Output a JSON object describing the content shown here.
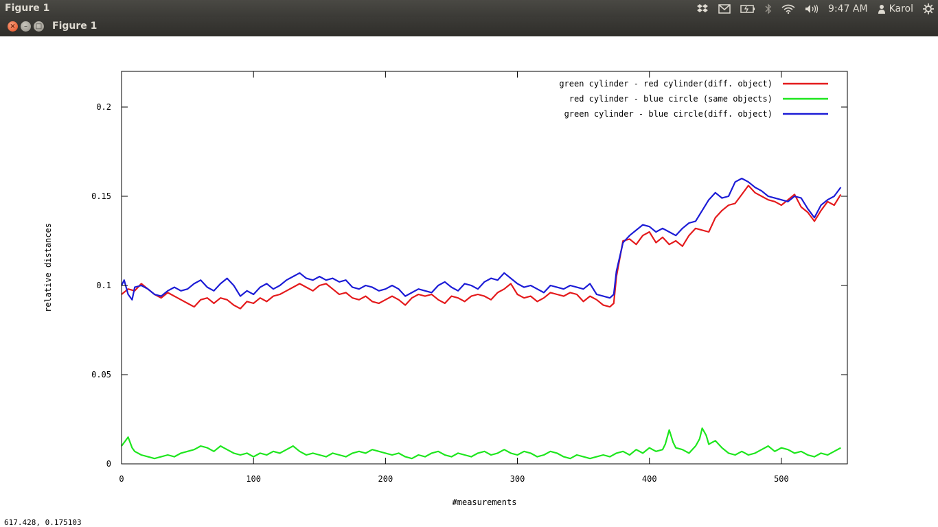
{
  "topbar": {
    "app_title": "Figure 1",
    "clock": "9:47 AM",
    "user": "Karol",
    "icons": [
      "dropbox-icon",
      "mail-icon",
      "battery-icon",
      "bluetooth-icon",
      "wifi-icon",
      "volume-icon",
      "user-icon",
      "gear-icon"
    ]
  },
  "window": {
    "title": "Figure 1",
    "buttons": {
      "close": "×",
      "minimize": "–",
      "maximize": "□"
    }
  },
  "status": {
    "coords": "617.428,  0.175103"
  },
  "chart_data": {
    "type": "line",
    "title": "",
    "xlabel": "#measurements",
    "ylabel": "relative distances",
    "xlim": [
      0,
      550
    ],
    "ylim": [
      0,
      0.22
    ],
    "xticks": [
      0,
      100,
      200,
      300,
      400,
      500
    ],
    "yticks": [
      0,
      0.05,
      0.1,
      0.15,
      0.2
    ],
    "xtick_labels": [
      "0",
      "100",
      "200",
      "300",
      "400",
      "500"
    ],
    "ytick_labels": [
      "0",
      "0.05",
      "0.1",
      "0.15",
      "0.2"
    ],
    "grid": false,
    "legend_position": "top-right",
    "series": [
      {
        "name": "green cylinder - red cylinder(diff. object)",
        "color": "#e41a1c",
        "x": [
          0,
          5,
          10,
          15,
          20,
          25,
          30,
          35,
          40,
          45,
          50,
          55,
          60,
          65,
          70,
          75,
          80,
          85,
          90,
          95,
          100,
          105,
          110,
          115,
          120,
          125,
          130,
          135,
          140,
          145,
          150,
          155,
          160,
          165,
          170,
          175,
          180,
          185,
          190,
          195,
          200,
          205,
          210,
          215,
          220,
          225,
          230,
          235,
          240,
          245,
          250,
          255,
          260,
          265,
          270,
          275,
          280,
          285,
          290,
          295,
          300,
          305,
          310,
          315,
          320,
          325,
          330,
          335,
          340,
          345,
          350,
          355,
          360,
          365,
          370,
          373,
          375,
          380,
          385,
          390,
          395,
          400,
          405,
          410,
          415,
          420,
          425,
          430,
          435,
          440,
          445,
          450,
          455,
          460,
          465,
          470,
          475,
          480,
          485,
          490,
          495,
          500,
          505,
          510,
          515,
          520,
          525,
          530,
          535,
          540,
          545
        ],
        "y": [
          0.095,
          0.098,
          0.097,
          0.101,
          0.098,
          0.095,
          0.093,
          0.096,
          0.094,
          0.092,
          0.09,
          0.088,
          0.092,
          0.093,
          0.09,
          0.093,
          0.092,
          0.089,
          0.087,
          0.091,
          0.09,
          0.093,
          0.091,
          0.094,
          0.095,
          0.097,
          0.099,
          0.101,
          0.099,
          0.097,
          0.1,
          0.101,
          0.098,
          0.095,
          0.096,
          0.093,
          0.092,
          0.094,
          0.091,
          0.09,
          0.092,
          0.094,
          0.092,
          0.089,
          0.093,
          0.095,
          0.094,
          0.095,
          0.092,
          0.09,
          0.094,
          0.093,
          0.091,
          0.094,
          0.095,
          0.094,
          0.092,
          0.096,
          0.098,
          0.101,
          0.095,
          0.093,
          0.094,
          0.091,
          0.093,
          0.096,
          0.095,
          0.094,
          0.096,
          0.095,
          0.091,
          0.094,
          0.092,
          0.089,
          0.088,
          0.09,
          0.105,
          0.125,
          0.126,
          0.123,
          0.128,
          0.13,
          0.124,
          0.127,
          0.123,
          0.125,
          0.122,
          0.128,
          0.132,
          0.131,
          0.13,
          0.138,
          0.142,
          0.145,
          0.146,
          0.151,
          0.156,
          0.152,
          0.15,
          0.148,
          0.147,
          0.145,
          0.148,
          0.151,
          0.144,
          0.141,
          0.136,
          0.142,
          0.147,
          0.145,
          0.151
        ]
      },
      {
        "name": "red cylinder - blue circle (same objects)",
        "color": "#1ee61e",
        "x": [
          0,
          3,
          5,
          8,
          10,
          15,
          20,
          25,
          30,
          35,
          40,
          45,
          50,
          55,
          60,
          65,
          70,
          75,
          80,
          85,
          90,
          95,
          100,
          105,
          110,
          115,
          120,
          125,
          130,
          135,
          140,
          145,
          150,
          155,
          160,
          165,
          170,
          175,
          180,
          185,
          190,
          195,
          200,
          205,
          210,
          215,
          220,
          225,
          230,
          235,
          240,
          245,
          250,
          255,
          260,
          265,
          270,
          275,
          280,
          285,
          290,
          295,
          300,
          305,
          310,
          315,
          320,
          325,
          330,
          335,
          340,
          345,
          350,
          355,
          360,
          365,
          370,
          375,
          380,
          385,
          390,
          395,
          400,
          405,
          410,
          412,
          415,
          418,
          420,
          425,
          430,
          435,
          438,
          440,
          443,
          445,
          450,
          455,
          460,
          465,
          470,
          475,
          480,
          485,
          490,
          495,
          500,
          505,
          510,
          515,
          520,
          525,
          530,
          535,
          540,
          545
        ],
        "y": [
          0.01,
          0.013,
          0.015,
          0.009,
          0.007,
          0.005,
          0.004,
          0.003,
          0.004,
          0.005,
          0.004,
          0.006,
          0.007,
          0.008,
          0.01,
          0.009,
          0.007,
          0.01,
          0.008,
          0.006,
          0.005,
          0.006,
          0.004,
          0.006,
          0.005,
          0.007,
          0.006,
          0.008,
          0.01,
          0.007,
          0.005,
          0.006,
          0.005,
          0.004,
          0.006,
          0.005,
          0.004,
          0.006,
          0.007,
          0.006,
          0.008,
          0.007,
          0.006,
          0.005,
          0.006,
          0.004,
          0.003,
          0.005,
          0.004,
          0.006,
          0.007,
          0.005,
          0.004,
          0.006,
          0.005,
          0.004,
          0.006,
          0.007,
          0.005,
          0.006,
          0.008,
          0.006,
          0.005,
          0.007,
          0.006,
          0.004,
          0.005,
          0.007,
          0.006,
          0.004,
          0.003,
          0.005,
          0.004,
          0.003,
          0.004,
          0.005,
          0.004,
          0.006,
          0.007,
          0.005,
          0.008,
          0.006,
          0.009,
          0.007,
          0.008,
          0.011,
          0.019,
          0.012,
          0.009,
          0.008,
          0.006,
          0.01,
          0.014,
          0.02,
          0.016,
          0.011,
          0.013,
          0.009,
          0.006,
          0.005,
          0.007,
          0.005,
          0.006,
          0.008,
          0.01,
          0.007,
          0.009,
          0.008,
          0.006,
          0.007,
          0.005,
          0.004,
          0.006,
          0.005,
          0.007,
          0.009
        ]
      },
      {
        "name": "green cylinder - blue circle(diff. object)",
        "color": "#1c1cd6",
        "x": [
          0,
          2,
          5,
          8,
          10,
          15,
          20,
          25,
          30,
          35,
          40,
          45,
          50,
          55,
          60,
          65,
          70,
          75,
          80,
          85,
          90,
          95,
          100,
          105,
          110,
          115,
          120,
          125,
          130,
          135,
          140,
          145,
          150,
          155,
          160,
          165,
          170,
          175,
          180,
          185,
          190,
          195,
          200,
          205,
          210,
          215,
          220,
          225,
          230,
          235,
          240,
          245,
          250,
          255,
          260,
          265,
          270,
          275,
          280,
          285,
          290,
          295,
          300,
          305,
          310,
          315,
          320,
          325,
          330,
          335,
          340,
          345,
          350,
          355,
          360,
          365,
          370,
          373,
          375,
          380,
          385,
          390,
          395,
          400,
          405,
          410,
          415,
          420,
          425,
          430,
          435,
          440,
          445,
          450,
          455,
          460,
          465,
          470,
          475,
          480,
          485,
          490,
          495,
          500,
          505,
          510,
          515,
          520,
          525,
          530,
          535,
          540,
          545
        ],
        "y": [
          0.1,
          0.103,
          0.095,
          0.092,
          0.099,
          0.1,
          0.098,
          0.095,
          0.094,
          0.097,
          0.099,
          0.097,
          0.098,
          0.101,
          0.103,
          0.099,
          0.097,
          0.101,
          0.104,
          0.1,
          0.094,
          0.097,
          0.095,
          0.099,
          0.101,
          0.098,
          0.1,
          0.103,
          0.105,
          0.107,
          0.104,
          0.103,
          0.105,
          0.103,
          0.104,
          0.102,
          0.103,
          0.099,
          0.098,
          0.1,
          0.099,
          0.097,
          0.098,
          0.1,
          0.098,
          0.094,
          0.096,
          0.098,
          0.097,
          0.096,
          0.1,
          0.102,
          0.099,
          0.097,
          0.101,
          0.1,
          0.098,
          0.102,
          0.104,
          0.103,
          0.107,
          0.104,
          0.101,
          0.099,
          0.1,
          0.098,
          0.096,
          0.1,
          0.099,
          0.098,
          0.1,
          0.099,
          0.098,
          0.101,
          0.095,
          0.094,
          0.093,
          0.095,
          0.108,
          0.124,
          0.128,
          0.131,
          0.134,
          0.133,
          0.13,
          0.132,
          0.13,
          0.128,
          0.132,
          0.135,
          0.136,
          0.142,
          0.148,
          0.152,
          0.149,
          0.15,
          0.158,
          0.16,
          0.158,
          0.155,
          0.153,
          0.15,
          0.149,
          0.148,
          0.147,
          0.15,
          0.149,
          0.143,
          0.138,
          0.145,
          0.148,
          0.15,
          0.155
        ]
      }
    ]
  }
}
